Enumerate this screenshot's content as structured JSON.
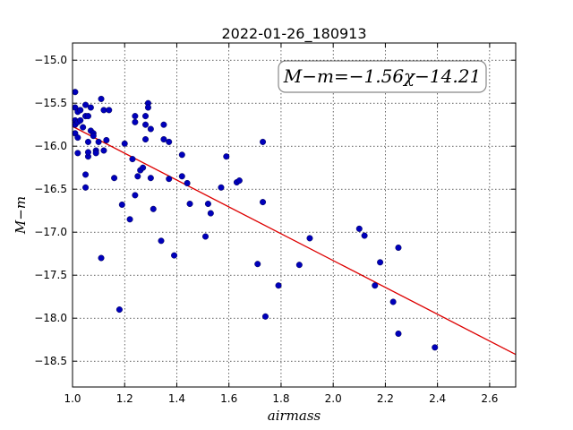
{
  "chart_data": {
    "type": "scatter",
    "title": "2022-01-26_180913",
    "xlabel": "airmass",
    "ylabel": "M−m",
    "xlim": [
      1.0,
      2.7
    ],
    "ylim": [
      -18.8,
      -14.8
    ],
    "y_inverted": true,
    "grid": true,
    "x_ticks": [
      1.0,
      1.2,
      1.4,
      1.6,
      1.8,
      2.0,
      2.2,
      2.4,
      2.6
    ],
    "x_tick_labels": [
      "1.0",
      "1.2",
      "1.4",
      "1.6",
      "1.8",
      "2.0",
      "2.2",
      "2.4",
      "2.6"
    ],
    "y_ticks": [
      -15.0,
      -15.5,
      -16.0,
      -16.5,
      -17.0,
      -17.5,
      -18.0,
      -18.5
    ],
    "y_tick_labels": [
      "−15.0",
      "−15.5",
      "−16.0",
      "−16.5",
      "−17.0",
      "−17.5",
      "−18.0",
      "−18.5"
    ],
    "annotation": "M−m=−1.56χ−14.21",
    "fit": {
      "slope": -1.56,
      "intercept": -14.21,
      "color": "#dd0000"
    },
    "point_color": "#0000bb",
    "points": [
      [
        1.01,
        -15.37
      ],
      [
        1.01,
        -15.55
      ],
      [
        1.01,
        -15.7
      ],
      [
        1.01,
        -15.75
      ],
      [
        1.01,
        -15.85
      ],
      [
        1.02,
        -15.6
      ],
      [
        1.02,
        -15.72
      ],
      [
        1.02,
        -15.9
      ],
      [
        1.02,
        -16.08
      ],
      [
        1.03,
        -15.58
      ],
      [
        1.03,
        -15.7
      ],
      [
        1.04,
        -15.78
      ],
      [
        1.05,
        -15.52
      ],
      [
        1.05,
        -15.65
      ],
      [
        1.05,
        -16.33
      ],
      [
        1.05,
        -16.48
      ],
      [
        1.06,
        -15.65
      ],
      [
        1.06,
        -15.95
      ],
      [
        1.06,
        -16.12
      ],
      [
        1.06,
        -16.07
      ],
      [
        1.07,
        -15.55
      ],
      [
        1.07,
        -15.82
      ],
      [
        1.08,
        -15.85
      ],
      [
        1.08,
        -15.88
      ],
      [
        1.09,
        -16.05
      ],
      [
        1.09,
        -16.08
      ],
      [
        1.1,
        -15.95
      ],
      [
        1.11,
        -15.45
      ],
      [
        1.11,
        -17.3
      ],
      [
        1.12,
        -15.58
      ],
      [
        1.12,
        -16.05
      ],
      [
        1.13,
        -15.93
      ],
      [
        1.14,
        -15.58
      ],
      [
        1.16,
        -16.37
      ],
      [
        1.18,
        -17.9
      ],
      [
        1.19,
        -16.68
      ],
      [
        1.2,
        -15.97
      ],
      [
        1.22,
        -16.85
      ],
      [
        1.23,
        -16.15
      ],
      [
        1.24,
        -15.65
      ],
      [
        1.24,
        -15.72
      ],
      [
        1.24,
        -16.57
      ],
      [
        1.25,
        -16.35
      ],
      [
        1.26,
        -16.28
      ],
      [
        1.27,
        -16.25
      ],
      [
        1.28,
        -15.65
      ],
      [
        1.28,
        -15.75
      ],
      [
        1.28,
        -15.92
      ],
      [
        1.29,
        -15.5
      ],
      [
        1.29,
        -15.55
      ],
      [
        1.3,
        -15.8
      ],
      [
        1.3,
        -16.37
      ],
      [
        1.31,
        -16.73
      ],
      [
        1.34,
        -17.1
      ],
      [
        1.35,
        -15.75
      ],
      [
        1.35,
        -15.92
      ],
      [
        1.37,
        -15.95
      ],
      [
        1.37,
        -16.38
      ],
      [
        1.39,
        -17.27
      ],
      [
        1.42,
        -16.35
      ],
      [
        1.42,
        -16.1
      ],
      [
        1.44,
        -16.43
      ],
      [
        1.45,
        -16.67
      ],
      [
        1.51,
        -17.05
      ],
      [
        1.52,
        -16.67
      ],
      [
        1.53,
        -16.78
      ],
      [
        1.57,
        -16.48
      ],
      [
        1.59,
        -16.12
      ],
      [
        1.63,
        -16.42
      ],
      [
        1.64,
        -16.4
      ],
      [
        1.71,
        -17.37
      ],
      [
        1.73,
        -15.95
      ],
      [
        1.73,
        -16.65
      ],
      [
        1.74,
        -17.98
      ],
      [
        1.79,
        -17.62
      ],
      [
        1.87,
        -17.38
      ],
      [
        1.91,
        -17.07
      ],
      [
        2.1,
        -16.96
      ],
      [
        2.12,
        -17.04
      ],
      [
        2.16,
        -17.62
      ],
      [
        2.18,
        -17.35
      ],
      [
        2.23,
        -17.81
      ],
      [
        2.25,
        -17.18
      ],
      [
        2.25,
        -18.18
      ],
      [
        2.39,
        -18.34
      ]
    ]
  }
}
